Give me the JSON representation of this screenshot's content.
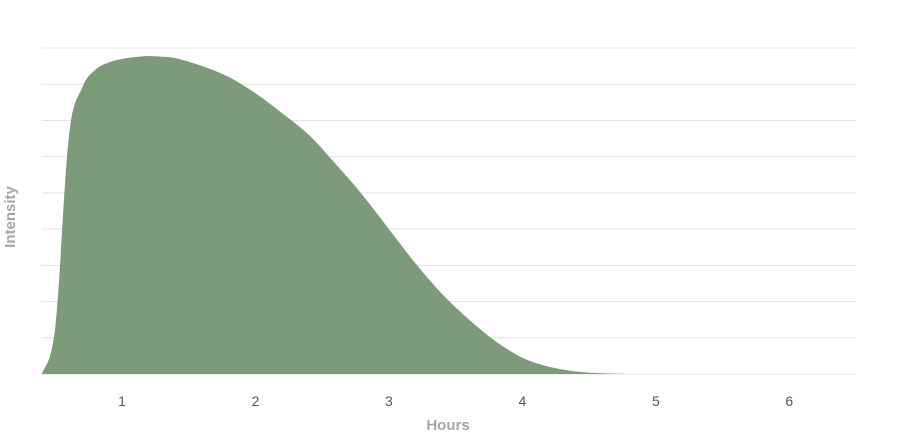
{
  "chart_data": {
    "type": "area",
    "xlabel": "Hours",
    "ylabel": "Intensity",
    "xlim": [
      0.4,
      6.5
    ],
    "ylim": [
      0,
      9
    ],
    "x_ticks": [
      "1",
      "2",
      "3",
      "4",
      "5",
      "6"
    ],
    "grid": true,
    "color": "#7d9b7a",
    "series": [
      {
        "x": [
          0.4,
          0.5,
          0.6,
          0.7,
          0.8,
          0.9,
          1.0,
          1.1,
          1.2,
          1.3,
          1.4,
          1.6,
          1.8,
          2.0,
          2.2,
          2.4,
          2.6,
          2.8,
          3.0,
          3.2,
          3.4,
          3.6,
          3.8,
          4.0,
          4.2,
          4.4,
          4.6,
          4.8,
          5.0,
          6.5
        ],
        "values": [
          0.0,
          1.3,
          6.5,
          7.9,
          8.4,
          8.6,
          8.7,
          8.75,
          8.78,
          8.76,
          8.72,
          8.5,
          8.2,
          7.75,
          7.2,
          6.6,
          5.8,
          4.95,
          4.0,
          3.05,
          2.2,
          1.5,
          0.9,
          0.45,
          0.2,
          0.07,
          0.02,
          0.0,
          0.0,
          0.0
        ]
      }
    ]
  }
}
